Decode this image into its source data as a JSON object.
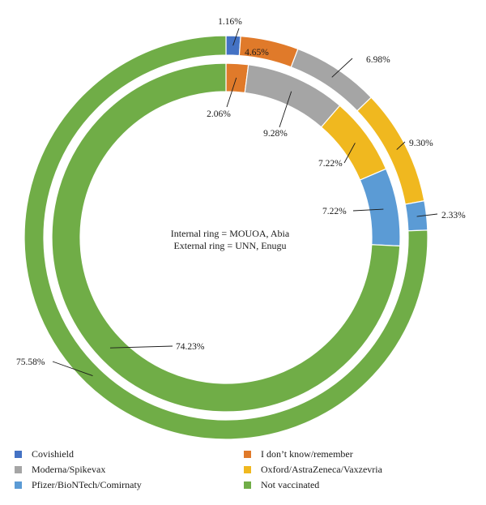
{
  "chart_data": {
    "type": "pie",
    "subtype": "double-donut",
    "center_text": [
      "Internal ring = MOUOA, Abia",
      "External ring = UNN, Enugu"
    ],
    "categories": [
      "Covishield",
      "I don’t know/remember",
      "Moderna/Spikevax",
      "Oxford/AstraZeneca/Vaxzevria",
      "Pfizer/BioNTech/Comirnaty",
      "Not vaccinated"
    ],
    "colors": [
      "#4472c4",
      "#e07a2a",
      "#a5a5a5",
      "#f0b81f",
      "#5b9bd5",
      "#70ad47"
    ],
    "series": [
      {
        "ring": "external",
        "values": [
          1.16,
          4.65,
          6.98,
          9.3,
          2.33,
          75.58
        ],
        "labels": [
          "1.16%",
          "4.65%",
          "6.98%",
          "9.30%",
          "2.33%",
          "75.58%"
        ]
      },
      {
        "ring": "internal",
        "values": [
          0,
          2.06,
          9.28,
          7.22,
          7.22,
          74.23
        ],
        "labels": [
          "",
          "2.06%",
          "9.28%",
          "7.22%",
          "7.22%",
          "74.23%"
        ]
      }
    ],
    "legend_position": "bottom"
  }
}
